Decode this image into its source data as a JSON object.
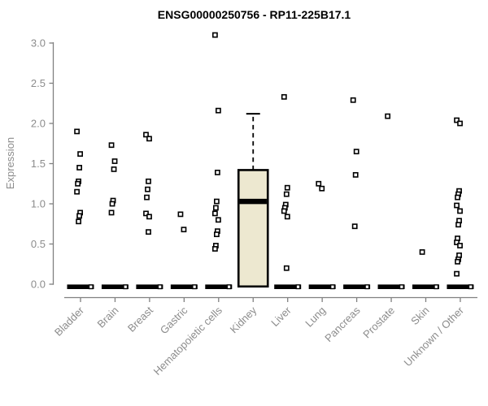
{
  "chart_data": {
    "type": "boxplot",
    "title": "ENSG00000250756 - RP11-225B17.1",
    "ylabel": "Expression",
    "xlabel": "",
    "ylim": [
      0.0,
      3.1
    ],
    "yticks": [
      "0.0",
      "0.5",
      "1.0",
      "1.5",
      "2.0",
      "2.5",
      "3.0"
    ],
    "grid": false,
    "legend": "none",
    "colors": {
      "box_fill": "#EDE8D0",
      "box_stroke": "#000000",
      "marker_stroke": "#000000",
      "marker_fill": "#FFFFFF",
      "axis_line": "#808080",
      "tick_text": "#8C8C8C",
      "title_text": "#000000",
      "background": "#FFFFFF"
    },
    "categories": [
      {
        "label": "Bladder",
        "has_zero_samples": true,
        "box": {
          "collapsed": true,
          "median": 0.0
        },
        "points": [
          1.9,
          1.62,
          1.45,
          1.28,
          1.25,
          1.15,
          0.89,
          0.85,
          0.78
        ]
      },
      {
        "label": "Brain",
        "has_zero_samples": true,
        "box": {
          "collapsed": true,
          "median": 0.0
        },
        "points": [
          1.73,
          1.53,
          1.43,
          1.04,
          1.0,
          0.89
        ]
      },
      {
        "label": "Breast",
        "has_zero_samples": true,
        "box": {
          "collapsed": true,
          "median": 0.0
        },
        "points": [
          1.86,
          1.81,
          1.28,
          1.18,
          1.08,
          0.88,
          0.84,
          0.65
        ]
      },
      {
        "label": "Gastric",
        "has_zero_samples": true,
        "box": {
          "collapsed": true,
          "median": 0.0
        },
        "points": [
          0.87,
          0.68
        ]
      },
      {
        "label": "Hematopoietic cells",
        "has_zero_samples": true,
        "box": {
          "collapsed": true,
          "median": 0.0
        },
        "points": [
          3.1,
          2.16,
          1.39,
          1.03,
          0.95,
          0.88,
          0.8,
          0.66,
          0.62,
          0.48,
          0.44
        ]
      },
      {
        "label": "Kidney",
        "has_zero_samples": false,
        "box": {
          "collapsed": false,
          "q1": 0.0,
          "median": 1.03,
          "q3": 1.42,
          "whisker_high": 2.12
        },
        "points": []
      },
      {
        "label": "Liver",
        "has_zero_samples": true,
        "box": {
          "collapsed": true,
          "median": 0.0
        },
        "points": [
          2.33,
          1.2,
          1.12,
          0.99,
          0.95,
          0.91,
          0.84,
          0.2
        ]
      },
      {
        "label": "Lung",
        "has_zero_samples": true,
        "box": {
          "collapsed": true,
          "median": 0.0
        },
        "points": [
          1.25,
          1.19
        ]
      },
      {
        "label": "Pancreas",
        "has_zero_samples": true,
        "box": {
          "collapsed": true,
          "median": 0.0
        },
        "points": [
          2.29,
          1.65,
          1.36,
          0.72
        ]
      },
      {
        "label": "Prostate",
        "has_zero_samples": true,
        "box": {
          "collapsed": true,
          "median": 0.0
        },
        "points": [
          2.09
        ]
      },
      {
        "label": "Skin",
        "has_zero_samples": true,
        "box": {
          "collapsed": true,
          "median": 0.0
        },
        "points": [
          0.4
        ]
      },
      {
        "label": "Unknown / Other",
        "has_zero_samples": true,
        "box": {
          "collapsed": true,
          "median": 0.0
        },
        "points": [
          2.04,
          2.0,
          1.16,
          1.12,
          1.08,
          0.98,
          0.91,
          0.79,
          0.74,
          0.57,
          0.52,
          0.48,
          0.36,
          0.31,
          0.28,
          0.13
        ]
      }
    ]
  }
}
